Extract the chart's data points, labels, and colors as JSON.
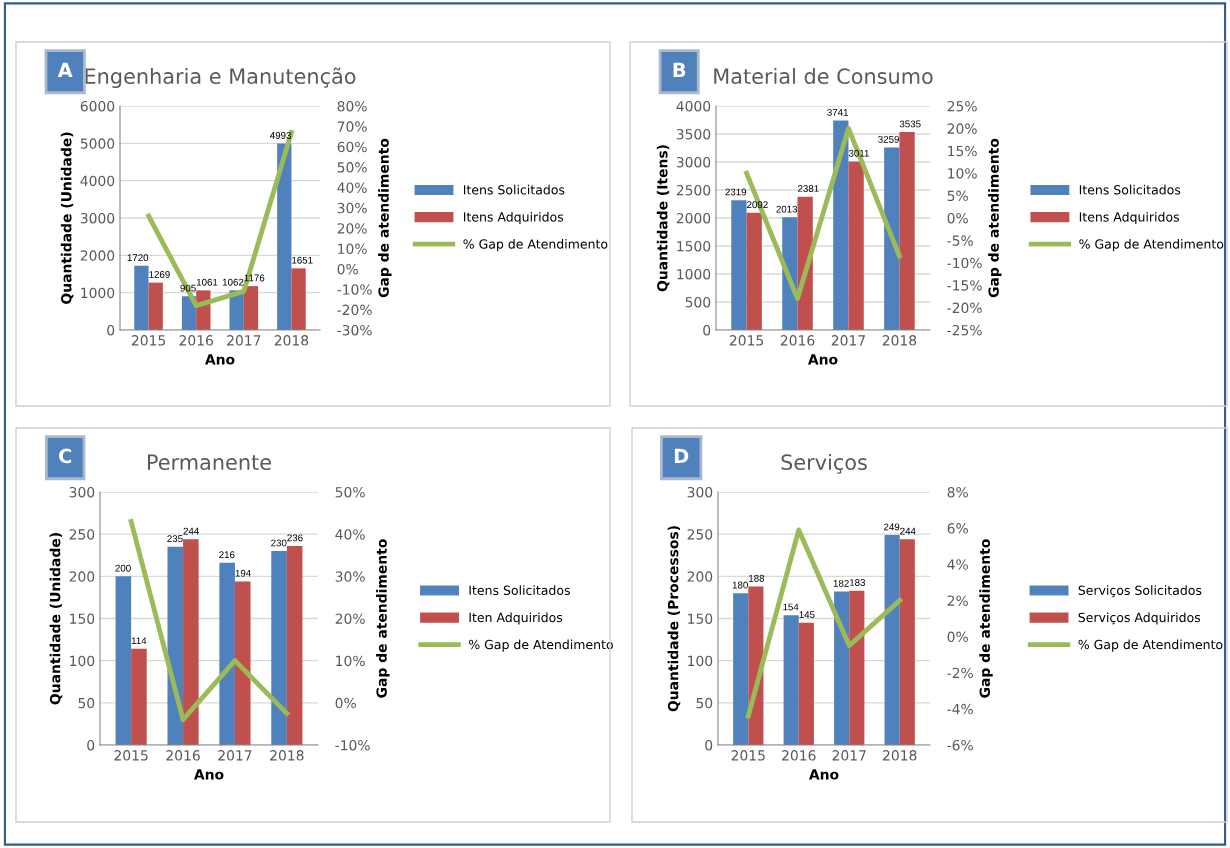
{
  "chart_data": [
    {
      "type": "bar",
      "title": "Engenharia e Manutenção",
      "annotations": [
        "A"
      ],
      "xlabel": "Ano",
      "ylabel": "Quantidade (Unidade)",
      "y2label": "Gap de atendimento",
      "categories": [
        "2015",
        "2016",
        "2017",
        "2018"
      ],
      "series": [
        {
          "name": "Itens Solicitados",
          "color": "#4f81bd",
          "values": [
            1720,
            905,
            1062,
            4993
          ],
          "value_labels": [
            "1720",
            "905",
            "1062",
            "4993"
          ]
        },
        {
          "name": "Itens Adquiridos",
          "color": "#c0504d",
          "values": [
            1269,
            1061,
            1176,
            1651
          ],
          "value_labels": [
            "1269",
            "1061",
            "1176",
            "1651"
          ]
        },
        {
          "name": "% Gap de Atendimento",
          "type": "line",
          "axis": "y2",
          "color": "#9bbb59",
          "values": [
            26,
            -18,
            -11,
            67
          ]
        }
      ],
      "ylim": [
        0,
        6000
      ],
      "yticks": [
        0,
        1000,
        2000,
        3000,
        4000,
        5000,
        6000
      ],
      "y2lim": [
        -30,
        80
      ],
      "y2ticks": [
        {
          "value": -30,
          "label": "-30%"
        },
        {
          "value": -20,
          "label": "-20%"
        },
        {
          "value": -10,
          "label": "-10%"
        },
        {
          "value": 0,
          "label": "0%"
        },
        {
          "value": 10,
          "label": "10%"
        },
        {
          "value": 20,
          "label": "20%"
        },
        {
          "value": 30,
          "label": "30%"
        },
        {
          "value": 40,
          "label": "40%"
        },
        {
          "value": 50,
          "label": "50%"
        },
        {
          "value": 60,
          "label": "60%"
        },
        {
          "value": 70,
          "label": "70%"
        },
        {
          "value": 80,
          "label": "80%"
        }
      ],
      "grid": "y",
      "legend": "right"
    },
    {
      "type": "bar",
      "title": "Material de Consumo",
      "annotations": [
        "B"
      ],
      "xlabel": "Ano",
      "ylabel": "Quantidade (Itens)",
      "y2label": "Gap de atendimento",
      "categories": [
        "2015",
        "2016",
        "2017",
        "2018"
      ],
      "series": [
        {
          "name": "Itens Solicitados",
          "color": "#4f81bd",
          "values": [
            2319,
            2013,
            3741,
            3259
          ],
          "value_labels": [
            "2319",
            "2013",
            "3741",
            "3259"
          ]
        },
        {
          "name": "Itens Adquiridos",
          "color": "#c0504d",
          "values": [
            2092,
            2381,
            3011,
            3535
          ],
          "value_labels": [
            "2092",
            "2381",
            "3011",
            "3535"
          ]
        },
        {
          "name": "% Gap de Atendimento",
          "type": "line",
          "axis": "y2",
          "color": "#9bbb59",
          "values": [
            10,
            -18,
            20,
            -8.5
          ]
        }
      ],
      "ylim": [
        0,
        4000
      ],
      "yticks": [
        0,
        500,
        1000,
        1500,
        2000,
        2500,
        3000,
        3500,
        4000
      ],
      "y2lim": [
        -25,
        25
      ],
      "y2ticks": [
        {
          "value": -25,
          "label": "-25%"
        },
        {
          "value": -20,
          "label": "-20%"
        },
        {
          "value": -15,
          "label": "-15%"
        },
        {
          "value": -10,
          "label": "-10%"
        },
        {
          "value": -5,
          "label": "-5%"
        },
        {
          "value": 0,
          "label": "0%"
        },
        {
          "value": 5,
          "label": "5%"
        },
        {
          "value": 10,
          "label": "10%"
        },
        {
          "value": 15,
          "label": "15%"
        },
        {
          "value": 20,
          "label": "20%"
        },
        {
          "value": 25,
          "label": "25%"
        }
      ],
      "grid": "y",
      "legend": "right"
    },
    {
      "type": "bar",
      "title": "Permanente",
      "annotations": [
        "C"
      ],
      "xlabel": "Ano",
      "ylabel": "Quantidade (Unidade)",
      "y2label": "Gap de atendimento",
      "categories": [
        "2015",
        "2016",
        "2017",
        "2018"
      ],
      "series": [
        {
          "name": "Itens Solicitados",
          "color": "#4f81bd",
          "values": [
            200,
            235,
            216,
            230
          ],
          "value_labels": [
            "200",
            "235",
            "216",
            "230"
          ]
        },
        {
          "name": "Iten Adquiridos",
          "color": "#c0504d",
          "values": [
            114,
            244,
            194,
            236
          ],
          "value_labels": [
            "114",
            "244",
            "194",
            "236"
          ]
        },
        {
          "name": "% Gap de Atendimento",
          "type": "line",
          "axis": "y2",
          "color": "#9bbb59",
          "values": [
            43,
            -4,
            10,
            -2.5
          ]
        }
      ],
      "ylim": [
        0,
        300
      ],
      "yticks": [
        0,
        50,
        100,
        150,
        200,
        250,
        300
      ],
      "y2lim": [
        -10,
        50
      ],
      "y2ticks": [
        {
          "value": -10,
          "label": "-10%"
        },
        {
          "value": 0,
          "label": "0%"
        },
        {
          "value": 10,
          "label": "10%"
        },
        {
          "value": 20,
          "label": "20%"
        },
        {
          "value": 30,
          "label": "30%"
        },
        {
          "value": 40,
          "label": "40%"
        },
        {
          "value": 50,
          "label": "50%"
        }
      ],
      "grid": "y",
      "legend": "right"
    },
    {
      "type": "bar",
      "title": "Serviços",
      "annotations": [
        "D"
      ],
      "xlabel": "Ano",
      "ylabel": "Quantidade (Processos)",
      "y2label": "Gap de atendimento",
      "categories": [
        "2015",
        "2016",
        "2017",
        "2018"
      ],
      "series": [
        {
          "name": "Serviços Solicitados",
          "color": "#4f81bd",
          "values": [
            180,
            154,
            182,
            249
          ],
          "value_labels": [
            "180",
            "154",
            "182",
            "249"
          ]
        },
        {
          "name": "Serviços Adquiridos",
          "color": "#c0504d",
          "values": [
            188,
            145,
            183,
            244
          ],
          "value_labels": [
            "188",
            "145",
            "183",
            "244"
          ]
        },
        {
          "name": "% Gap de Atendimento",
          "type": "line",
          "axis": "y2",
          "color": "#9bbb59",
          "values": [
            -4.4,
            5.9,
            -0.5,
            2.0
          ]
        }
      ],
      "ylim": [
        0,
        300
      ],
      "yticks": [
        0,
        50,
        100,
        150,
        200,
        250,
        300
      ],
      "y2lim": [
        -6,
        8
      ],
      "y2ticks": [
        {
          "value": -6,
          "label": "-6%"
        },
        {
          "value": -4,
          "label": "-4%"
        },
        {
          "value": -2,
          "label": "-2%"
        },
        {
          "value": 0,
          "label": "0%"
        },
        {
          "value": 2,
          "label": "2%"
        },
        {
          "value": 4,
          "label": "4%"
        },
        {
          "value": 6,
          "label": "6%"
        },
        {
          "value": 8,
          "label": "8%"
        }
      ],
      "grid": "y",
      "legend": "right"
    }
  ]
}
